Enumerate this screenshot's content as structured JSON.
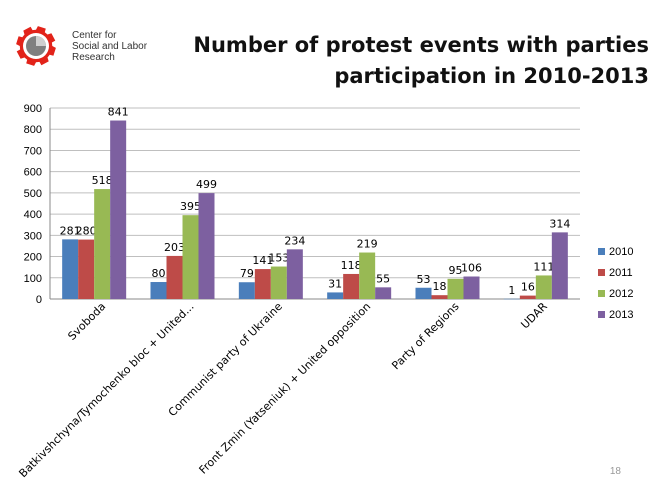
{
  "logo": {
    "lines": [
      "Center for",
      "Social and Labor",
      "Research"
    ],
    "gear_color": "#e2231a"
  },
  "title_lines": [
    "Number of protest events with parties",
    "participation in 2010-2013"
  ],
  "page_number": "18",
  "chart_data": {
    "type": "bar",
    "title": "Number of protest events with parties participation in 2010-2013",
    "categories": [
      "Svoboda",
      "Batkivshchyna/Tymochenko bloc + United...",
      "Communist party of Ukraine",
      "Front Zmin (Yatseniuk) + United opposition",
      "Party of Regions",
      "UDAR"
    ],
    "series": [
      {
        "name": "2010",
        "values": [
          281,
          80,
          79,
          31,
          53,
          1
        ],
        "color": "#4a7ebb"
      },
      {
        "name": "2011",
        "values": [
          280,
          203,
          141,
          118,
          18,
          16
        ],
        "color": "#be4b48"
      },
      {
        "name": "2012",
        "values": [
          518,
          395,
          153,
          219,
          95,
          111
        ],
        "color": "#98b954"
      },
      {
        "name": "2013",
        "values": [
          841,
          499,
          234,
          55,
          106,
          314
        ],
        "color": "#7d60a0"
      }
    ],
    "ylim": [
      0,
      900
    ],
    "yticks": [
      0,
      100,
      200,
      300,
      400,
      500,
      600,
      700,
      800,
      900
    ],
    "grid": true,
    "legend": "right",
    "xlabel": "",
    "ylabel": ""
  }
}
